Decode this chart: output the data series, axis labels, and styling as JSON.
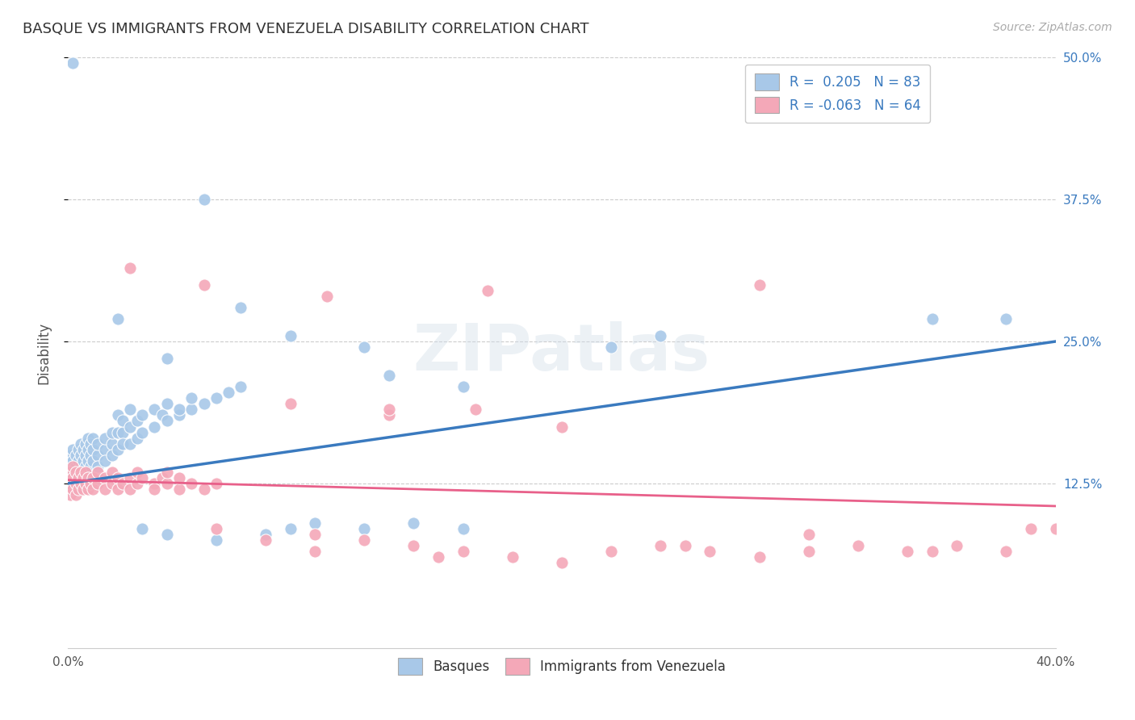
{
  "title": "BASQUE VS IMMIGRANTS FROM VENEZUELA DISABILITY CORRELATION CHART",
  "source": "Source: ZipAtlas.com",
  "ylabel": "Disability",
  "color_blue": "#a8c8e8",
  "color_pink": "#f4a8b8",
  "color_line_blue": "#3a7abf",
  "color_line_pink": "#e8608a",
  "watermark": "ZIPatlas",
  "blue_points": [
    [
      0.001,
      0.13
    ],
    [
      0.001,
      0.14
    ],
    [
      0.001,
      0.15
    ],
    [
      0.001,
      0.12
    ],
    [
      0.002,
      0.135
    ],
    [
      0.002,
      0.145
    ],
    [
      0.002,
      0.155
    ],
    [
      0.002,
      0.125
    ],
    [
      0.003,
      0.14
    ],
    [
      0.003,
      0.13
    ],
    [
      0.003,
      0.12
    ],
    [
      0.003,
      0.15
    ],
    [
      0.004,
      0.145
    ],
    [
      0.004,
      0.135
    ],
    [
      0.004,
      0.125
    ],
    [
      0.004,
      0.155
    ],
    [
      0.005,
      0.14
    ],
    [
      0.005,
      0.13
    ],
    [
      0.005,
      0.15
    ],
    [
      0.005,
      0.16
    ],
    [
      0.006,
      0.145
    ],
    [
      0.006,
      0.135
    ],
    [
      0.006,
      0.155
    ],
    [
      0.006,
      0.125
    ],
    [
      0.007,
      0.15
    ],
    [
      0.007,
      0.14
    ],
    [
      0.007,
      0.16
    ],
    [
      0.007,
      0.13
    ],
    [
      0.008,
      0.145
    ],
    [
      0.008,
      0.135
    ],
    [
      0.008,
      0.155
    ],
    [
      0.008,
      0.165
    ],
    [
      0.009,
      0.15
    ],
    [
      0.009,
      0.14
    ],
    [
      0.009,
      0.16
    ],
    [
      0.01,
      0.155
    ],
    [
      0.01,
      0.145
    ],
    [
      0.01,
      0.165
    ],
    [
      0.012,
      0.15
    ],
    [
      0.012,
      0.16
    ],
    [
      0.012,
      0.14
    ],
    [
      0.015,
      0.155
    ],
    [
      0.015,
      0.165
    ],
    [
      0.015,
      0.145
    ],
    [
      0.018,
      0.16
    ],
    [
      0.018,
      0.17
    ],
    [
      0.018,
      0.15
    ],
    [
      0.02,
      0.17
    ],
    [
      0.02,
      0.155
    ],
    [
      0.02,
      0.185
    ],
    [
      0.022,
      0.17
    ],
    [
      0.022,
      0.16
    ],
    [
      0.022,
      0.18
    ],
    [
      0.025,
      0.175
    ],
    [
      0.025,
      0.16
    ],
    [
      0.025,
      0.19
    ],
    [
      0.028,
      0.18
    ],
    [
      0.028,
      0.165
    ],
    [
      0.03,
      0.185
    ],
    [
      0.03,
      0.17
    ],
    [
      0.035,
      0.19
    ],
    [
      0.035,
      0.175
    ],
    [
      0.038,
      0.185
    ],
    [
      0.04,
      0.195
    ],
    [
      0.04,
      0.18
    ],
    [
      0.045,
      0.185
    ],
    [
      0.045,
      0.19
    ],
    [
      0.05,
      0.19
    ],
    [
      0.05,
      0.2
    ],
    [
      0.055,
      0.195
    ],
    [
      0.06,
      0.2
    ],
    [
      0.065,
      0.205
    ],
    [
      0.07,
      0.21
    ],
    [
      0.002,
      0.495
    ],
    [
      0.055,
      0.375
    ],
    [
      0.02,
      0.27
    ],
    [
      0.04,
      0.235
    ],
    [
      0.07,
      0.28
    ],
    [
      0.09,
      0.255
    ],
    [
      0.12,
      0.245
    ],
    [
      0.13,
      0.22
    ],
    [
      0.16,
      0.21
    ],
    [
      0.22,
      0.245
    ],
    [
      0.24,
      0.255
    ],
    [
      0.35,
      0.27
    ],
    [
      0.38,
      0.27
    ],
    [
      0.1,
      0.09
    ],
    [
      0.12,
      0.085
    ],
    [
      0.14,
      0.09
    ],
    [
      0.16,
      0.085
    ],
    [
      0.04,
      0.08
    ],
    [
      0.06,
      0.075
    ],
    [
      0.08,
      0.08
    ],
    [
      0.09,
      0.085
    ],
    [
      0.03,
      0.085
    ]
  ],
  "pink_points": [
    [
      0.001,
      0.125
    ],
    [
      0.001,
      0.135
    ],
    [
      0.001,
      0.115
    ],
    [
      0.002,
      0.13
    ],
    [
      0.002,
      0.12
    ],
    [
      0.002,
      0.14
    ],
    [
      0.003,
      0.125
    ],
    [
      0.003,
      0.135
    ],
    [
      0.003,
      0.115
    ],
    [
      0.004,
      0.13
    ],
    [
      0.004,
      0.12
    ],
    [
      0.005,
      0.125
    ],
    [
      0.005,
      0.135
    ],
    [
      0.006,
      0.13
    ],
    [
      0.006,
      0.12
    ],
    [
      0.007,
      0.125
    ],
    [
      0.007,
      0.135
    ],
    [
      0.008,
      0.13
    ],
    [
      0.008,
      0.12
    ],
    [
      0.009,
      0.125
    ],
    [
      0.01,
      0.13
    ],
    [
      0.01,
      0.12
    ],
    [
      0.012,
      0.125
    ],
    [
      0.012,
      0.135
    ],
    [
      0.015,
      0.13
    ],
    [
      0.015,
      0.12
    ],
    [
      0.018,
      0.125
    ],
    [
      0.018,
      0.135
    ],
    [
      0.02,
      0.13
    ],
    [
      0.02,
      0.12
    ],
    [
      0.022,
      0.125
    ],
    [
      0.025,
      0.13
    ],
    [
      0.025,
      0.12
    ],
    [
      0.028,
      0.125
    ],
    [
      0.028,
      0.135
    ],
    [
      0.03,
      0.13
    ],
    [
      0.035,
      0.125
    ],
    [
      0.035,
      0.12
    ],
    [
      0.038,
      0.13
    ],
    [
      0.04,
      0.125
    ],
    [
      0.04,
      0.135
    ],
    [
      0.045,
      0.12
    ],
    [
      0.045,
      0.13
    ],
    [
      0.05,
      0.125
    ],
    [
      0.055,
      0.12
    ],
    [
      0.06,
      0.125
    ],
    [
      0.025,
      0.315
    ],
    [
      0.055,
      0.3
    ],
    [
      0.105,
      0.29
    ],
    [
      0.17,
      0.295
    ],
    [
      0.28,
      0.3
    ],
    [
      0.09,
      0.195
    ],
    [
      0.13,
      0.185
    ],
    [
      0.165,
      0.19
    ],
    [
      0.2,
      0.175
    ],
    [
      0.13,
      0.19
    ],
    [
      0.06,
      0.085
    ],
    [
      0.08,
      0.075
    ],
    [
      0.1,
      0.08
    ],
    [
      0.12,
      0.075
    ],
    [
      0.14,
      0.07
    ],
    [
      0.16,
      0.065
    ],
    [
      0.18,
      0.06
    ],
    [
      0.2,
      0.055
    ],
    [
      0.22,
      0.065
    ],
    [
      0.24,
      0.07
    ],
    [
      0.26,
      0.065
    ],
    [
      0.28,
      0.06
    ],
    [
      0.3,
      0.065
    ],
    [
      0.32,
      0.07
    ],
    [
      0.34,
      0.065
    ],
    [
      0.36,
      0.07
    ],
    [
      0.38,
      0.065
    ],
    [
      0.4,
      0.085
    ],
    [
      0.1,
      0.065
    ],
    [
      0.15,
      0.06
    ],
    [
      0.25,
      0.07
    ],
    [
      0.3,
      0.08
    ],
    [
      0.35,
      0.065
    ],
    [
      0.39,
      0.085
    ]
  ],
  "xlim": [
    0.0,
    0.4
  ],
  "ylim": [
    -0.02,
    0.5
  ],
  "blue_line_x": [
    0.0,
    0.4
  ],
  "blue_line_y": [
    0.125,
    0.25
  ],
  "pink_line_x": [
    0.0,
    0.4
  ],
  "pink_line_y": [
    0.128,
    0.105
  ]
}
